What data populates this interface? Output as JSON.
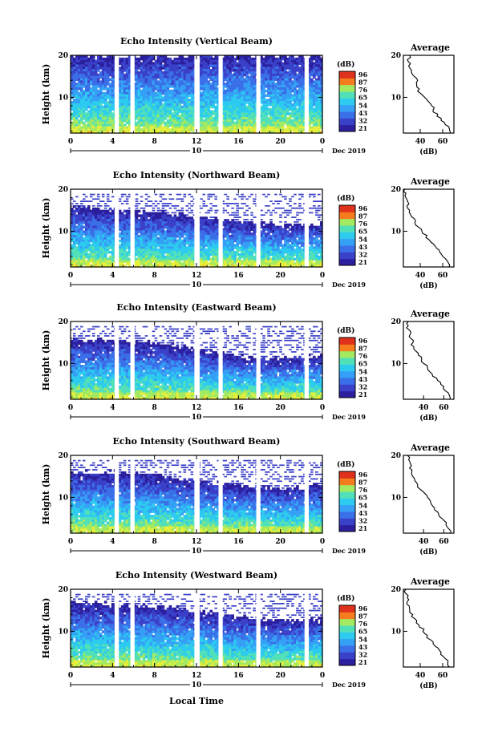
{
  "figure": {
    "bottom_label": "Local Time",
    "panel_header": "Average",
    "units": "(dB)",
    "date_label": "Dec 2019",
    "day_marker": "10"
  },
  "palette": [
    "#2b1f9e",
    "#3a40c8",
    "#3b6fe8",
    "#35a0f5",
    "#2ccbef",
    "#52e0b8",
    "#a3ea62",
    "#e8ef3a",
    "#f7c126",
    "#f57d1e",
    "#e0311c",
    "#b4131b"
  ],
  "chart_data": [
    {
      "type": "heatmap",
      "title": "Echo Intensity (Vertical Beam)",
      "ylabel": "Height (km)",
      "xlabel": "",
      "x_ticks": [
        "0",
        "4",
        "8",
        "12",
        "16",
        "20",
        "0"
      ],
      "x_range": [
        0,
        24
      ],
      "y_ticks": [
        "10",
        "20"
      ],
      "y_range": [
        1.5,
        20
      ],
      "colorbar": {
        "label": "(dB)",
        "ticks": [
          "96",
          "87",
          "76",
          "65",
          "54",
          "43",
          "32",
          "21"
        ]
      },
      "data_gaps_hours": [
        [
          4.2,
          4.6
        ],
        [
          5.7,
          6.1
        ],
        [
          11.8,
          12.3
        ],
        [
          14.1,
          14.5
        ],
        [
          17.7,
          18.1
        ],
        [
          22.3,
          22.7
        ]
      ],
      "top_of_echo_km": [
        20,
        20,
        20,
        20,
        20,
        20,
        20
      ],
      "average_profile": {
        "xlabel": "(dB)",
        "x_ticks": [
          "40",
          "60"
        ],
        "x_range": [
          25,
          70
        ],
        "heights_km": [
          1.5,
          3,
          4,
          5,
          6,
          7,
          8,
          9,
          10,
          11,
          12,
          13,
          14,
          15,
          16,
          17,
          18,
          19,
          20
        ],
        "values_db": [
          68,
          66,
          62,
          58,
          55,
          52,
          50,
          47,
          44,
          40,
          39,
          36,
          37,
          34,
          32,
          30,
          31,
          29,
          30
        ]
      }
    },
    {
      "type": "heatmap",
      "title": "Echo Intensity (Northward Beam)",
      "ylabel": "Height (km)",
      "xlabel": "",
      "x_ticks": [
        "0",
        "4",
        "8",
        "12",
        "16",
        "20",
        "0"
      ],
      "x_range": [
        0,
        24
      ],
      "y_ticks": [
        "10",
        "20"
      ],
      "y_range": [
        1.5,
        20
      ],
      "colorbar": {
        "label": "(dB)",
        "ticks": [
          "96",
          "87",
          "76",
          "65",
          "54",
          "43",
          "32",
          "21"
        ]
      },
      "data_gaps_hours": [
        [
          4.2,
          4.6
        ],
        [
          5.7,
          6.1
        ],
        [
          11.8,
          12.3
        ],
        [
          14.1,
          14.5
        ],
        [
          17.7,
          18.1
        ],
        [
          22.3,
          22.7
        ]
      ],
      "top_of_echo_km": [
        16,
        15,
        14.5,
        13.5,
        12.5,
        11.5,
        12
      ],
      "average_profile": {
        "xlabel": "(dB)",
        "x_ticks": [
          "40",
          "60"
        ],
        "x_range": [
          25,
          70
        ],
        "heights_km": [
          1.5,
          3,
          4,
          5,
          6,
          7,
          8,
          9,
          10,
          11,
          12,
          13,
          14,
          15,
          16,
          17,
          18,
          19,
          20
        ],
        "values_db": [
          66,
          64,
          60,
          57,
          54,
          51,
          48,
          45,
          42,
          39,
          36,
          34,
          32,
          31,
          29,
          28,
          27,
          27,
          26
        ]
      }
    },
    {
      "type": "heatmap",
      "title": "Echo Intensity (Eastward Beam)",
      "ylabel": "Height (km)",
      "xlabel": "",
      "x_ticks": [
        "0",
        "4",
        "8",
        "12",
        "16",
        "20",
        "0"
      ],
      "x_range": [
        0,
        24
      ],
      "y_ticks": [
        "10",
        "20"
      ],
      "y_range": [
        1.5,
        20
      ],
      "colorbar": {
        "label": "(dB)",
        "ticks": [
          "96",
          "87",
          "76",
          "65",
          "54",
          "43",
          "32",
          "21"
        ]
      },
      "data_gaps_hours": [
        [
          4.2,
          4.6
        ],
        [
          5.7,
          6.1
        ],
        [
          11.8,
          12.3
        ],
        [
          14.1,
          14.5
        ],
        [
          17.7,
          18.1
        ],
        [
          22.3,
          22.7
        ]
      ],
      "top_of_echo_km": [
        16,
        15.5,
        15,
        13.5,
        12,
        11,
        12
      ],
      "average_profile": {
        "xlabel": "(dB)",
        "x_ticks": [
          "40",
          "60"
        ],
        "x_range": [
          20,
          70
        ],
        "heights_km": [
          1.5,
          3,
          4,
          5,
          6,
          7,
          8,
          9,
          10,
          11,
          12,
          13,
          14,
          15,
          16,
          17,
          18,
          19,
          20
        ],
        "values_db": [
          66,
          64,
          60,
          57,
          54,
          50,
          47,
          44,
          41,
          38,
          35,
          32,
          30,
          29,
          27,
          26,
          25,
          25,
          24
        ]
      }
    },
    {
      "type": "heatmap",
      "title": "Echo Intensity (Southward Beam)",
      "ylabel": "Height (km)",
      "xlabel": "",
      "x_ticks": [
        "0",
        "4",
        "8",
        "12",
        "16",
        "20",
        "0"
      ],
      "x_range": [
        0,
        24
      ],
      "y_ticks": [
        "10",
        "20"
      ],
      "y_range": [
        1.5,
        20
      ],
      "colorbar": {
        "label": "(dB)",
        "ticks": [
          "96",
          "87",
          "76",
          "65",
          "54",
          "43",
          "32",
          "21"
        ]
      },
      "data_gaps_hours": [
        [
          4.2,
          4.6
        ],
        [
          5.7,
          6.1
        ],
        [
          11.8,
          12.3
        ],
        [
          14.1,
          14.5
        ],
        [
          17.7,
          18.1
        ],
        [
          22.3,
          22.7
        ]
      ],
      "top_of_echo_km": [
        16,
        16,
        15.5,
        14,
        13,
        12,
        13
      ],
      "average_profile": {
        "xlabel": "(dB)",
        "x_ticks": [
          "40",
          "60"
        ],
        "x_range": [
          20,
          70
        ],
        "heights_km": [
          1.5,
          3,
          4,
          5,
          6,
          7,
          8,
          9,
          10,
          11,
          12,
          13,
          14,
          15,
          16,
          17,
          18,
          19,
          20
        ],
        "values_db": [
          66,
          64,
          62,
          58,
          55,
          52,
          49,
          46,
          43,
          40,
          37,
          34,
          32,
          30,
          29,
          27,
          26,
          26,
          25
        ]
      }
    },
    {
      "type": "heatmap",
      "title": "Echo Intensity (Westward Beam)",
      "ylabel": "Height (km)",
      "xlabel": "",
      "x_ticks": [
        "0",
        "4",
        "8",
        "12",
        "16",
        "20",
        "0"
      ],
      "x_range": [
        0,
        24
      ],
      "y_ticks": [
        "10",
        "20"
      ],
      "y_range": [
        1.5,
        20
      ],
      "colorbar": {
        "label": "(dB)",
        "ticks": [
          "96",
          "87",
          "76",
          "65",
          "54",
          "43",
          "32",
          "21"
        ]
      },
      "data_gaps_hours": [
        [
          4.2,
          4.6
        ],
        [
          5.7,
          6.1
        ],
        [
          11.8,
          12.3
        ],
        [
          14.1,
          14.5
        ],
        [
          17.7,
          18.1
        ],
        [
          22.3,
          22.7
        ]
      ],
      "top_of_echo_km": [
        17,
        16.5,
        16,
        15,
        13.5,
        12.5,
        13
      ],
      "average_profile": {
        "xlabel": "(dB)",
        "x_ticks": [
          "40",
          "60"
        ],
        "x_range": [
          25,
          70
        ],
        "heights_km": [
          1.5,
          3,
          4,
          5,
          6,
          7,
          8,
          9,
          10,
          11,
          12,
          13,
          14,
          15,
          16,
          17,
          18,
          19,
          20
        ],
        "values_db": [
          66,
          64,
          61,
          58,
          55,
          52,
          49,
          46,
          43,
          40,
          37,
          35,
          33,
          31,
          30,
          29,
          28,
          27,
          27
        ]
      }
    }
  ]
}
